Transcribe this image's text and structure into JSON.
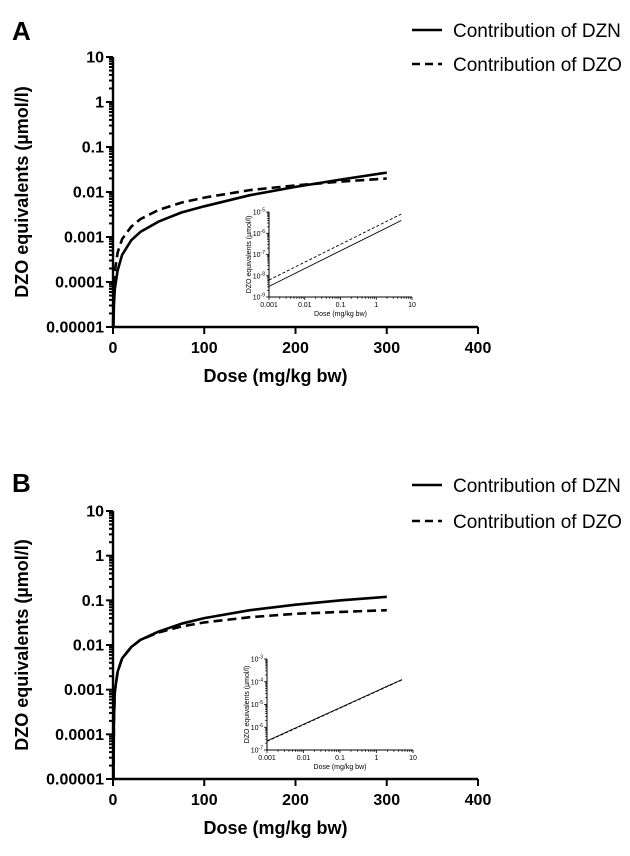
{
  "chart_data": [
    {
      "panel": "A",
      "type": "line",
      "xlabel": "Dose (mg/kg bw)",
      "ylabel": "DZO equivalents (µmol/l)",
      "xlim": [
        0,
        400
      ],
      "ylim": [
        1e-05,
        10
      ],
      "yscale": "log",
      "xticks": [
        0,
        100,
        200,
        300,
        400
      ],
      "yticks": [
        1e-05,
        0.0001,
        0.001,
        0.01,
        0.1,
        1,
        10
      ],
      "ytick_labels": [
        "0.00001",
        "0.0001",
        "0.001",
        "0.01",
        "0.1",
        "1",
        "10"
      ],
      "legend_placement": "top-right",
      "series": [
        {
          "name": "Contribution of DZN",
          "style": "solid",
          "x": [
            0.5,
            1,
            2,
            5,
            10,
            20,
            30,
            50,
            75,
            100,
            150,
            200,
            250,
            300
          ],
          "y": [
            1e-05,
            3e-05,
            7e-05,
            0.00018,
            0.0004,
            0.00085,
            0.0013,
            0.0022,
            0.0035,
            0.0048,
            0.0085,
            0.013,
            0.019,
            0.027
          ]
        },
        {
          "name": "Contribution of DZO",
          "style": "dashed",
          "x": [
            0.5,
            1,
            2,
            5,
            10,
            20,
            30,
            50,
            75,
            100,
            150,
            200,
            250,
            300
          ],
          "y": [
            3e-05,
            8e-05,
            0.00017,
            0.00045,
            0.0009,
            0.0017,
            0.0025,
            0.004,
            0.0058,
            0.0075,
            0.011,
            0.014,
            0.017,
            0.02
          ]
        }
      ],
      "inset": {
        "type": "line",
        "xscale": "log",
        "yscale": "log",
        "xlabel": "Dose (mg/kg bw)",
        "ylabel": "DZO equivalents (µmol/l)",
        "xlim": [
          0.001,
          10
        ],
        "xticks": [
          0.001,
          0.01,
          0.1,
          1,
          10
        ],
        "xtick_labels": [
          "0.001",
          "0.01",
          "0.1",
          "1",
          "10"
        ],
        "ylim": [
          -9,
          -5
        ],
        "ytick_exponents": [
          -9,
          -8,
          -7,
          -6,
          -5
        ],
        "ytick_labels": [
          "10",
          "10",
          "10",
          "10",
          "10"
        ],
        "series": [
          {
            "name": "Contribution of DZN",
            "style": "solid",
            "x": [
              0.001,
              5
            ],
            "y": [
              -8.5,
              -5.4
            ]
          },
          {
            "name": "Contribution of DZO",
            "style": "dashed",
            "x": [
              0.001,
              5
            ],
            "y": [
              -8.2,
              -5.1
            ]
          }
        ]
      }
    },
    {
      "panel": "B",
      "type": "line",
      "xlabel": "Dose (mg/kg bw)",
      "ylabel": "DZO equivalents (µmol/l)",
      "xlim": [
        0,
        400
      ],
      "ylim": [
        1e-05,
        10
      ],
      "yscale": "log",
      "xticks": [
        0,
        100,
        200,
        300,
        400
      ],
      "yticks": [
        1e-05,
        0.0001,
        0.001,
        0.01,
        0.1,
        1,
        10
      ],
      "ytick_labels": [
        "0.00001",
        "0.0001",
        "0.001",
        "0.01",
        "0.1",
        "1",
        "10"
      ],
      "legend_placement": "top-right",
      "series": [
        {
          "name": "Contribution of DZN",
          "style": "solid",
          "x": [
            0.5,
            1,
            2,
            5,
            10,
            20,
            30,
            50,
            75,
            100,
            150,
            200,
            250,
            300
          ],
          "y": [
            1e-05,
            0.0002,
            0.0009,
            0.0025,
            0.005,
            0.009,
            0.013,
            0.02,
            0.03,
            0.04,
            0.06,
            0.08,
            0.1,
            0.12
          ]
        },
        {
          "name": "Contribution of DZO",
          "style": "dashed",
          "x": [
            0.5,
            1,
            2,
            5,
            10,
            20,
            30,
            50,
            75,
            100,
            150,
            200,
            250,
            300
          ],
          "y": [
            1e-05,
            0.0002,
            0.0009,
            0.0025,
            0.005,
            0.009,
            0.013,
            0.019,
            0.026,
            0.032,
            0.042,
            0.05,
            0.055,
            0.06
          ]
        }
      ],
      "inset": {
        "type": "line",
        "xscale": "log",
        "yscale": "log",
        "xlabel": "Dose (mg/kg bw)",
        "ylabel": "DZO equivalents (µmol/l)",
        "xlim": [
          0.001,
          10
        ],
        "xticks": [
          0.001,
          0.01,
          0.1,
          1,
          10
        ],
        "xtick_labels": [
          "0.001",
          "0.01",
          "0.1",
          "1",
          "10"
        ],
        "ylim": [
          -7,
          -3
        ],
        "ytick_exponents": [
          -7,
          -6,
          -5,
          -4,
          -3
        ],
        "ytick_labels": [
          "10",
          "10",
          "10",
          "10",
          "10"
        ],
        "series": [
          {
            "name": "Contribution of DZN",
            "style": "solid",
            "x": [
              0.001,
              5
            ],
            "y": [
              -6.6,
              -3.9
            ]
          },
          {
            "name": "Contribution of DZO",
            "style": "dashed",
            "x": [
              0.001,
              5
            ],
            "y": [
              -6.62,
              -3.92
            ]
          }
        ]
      }
    }
  ]
}
